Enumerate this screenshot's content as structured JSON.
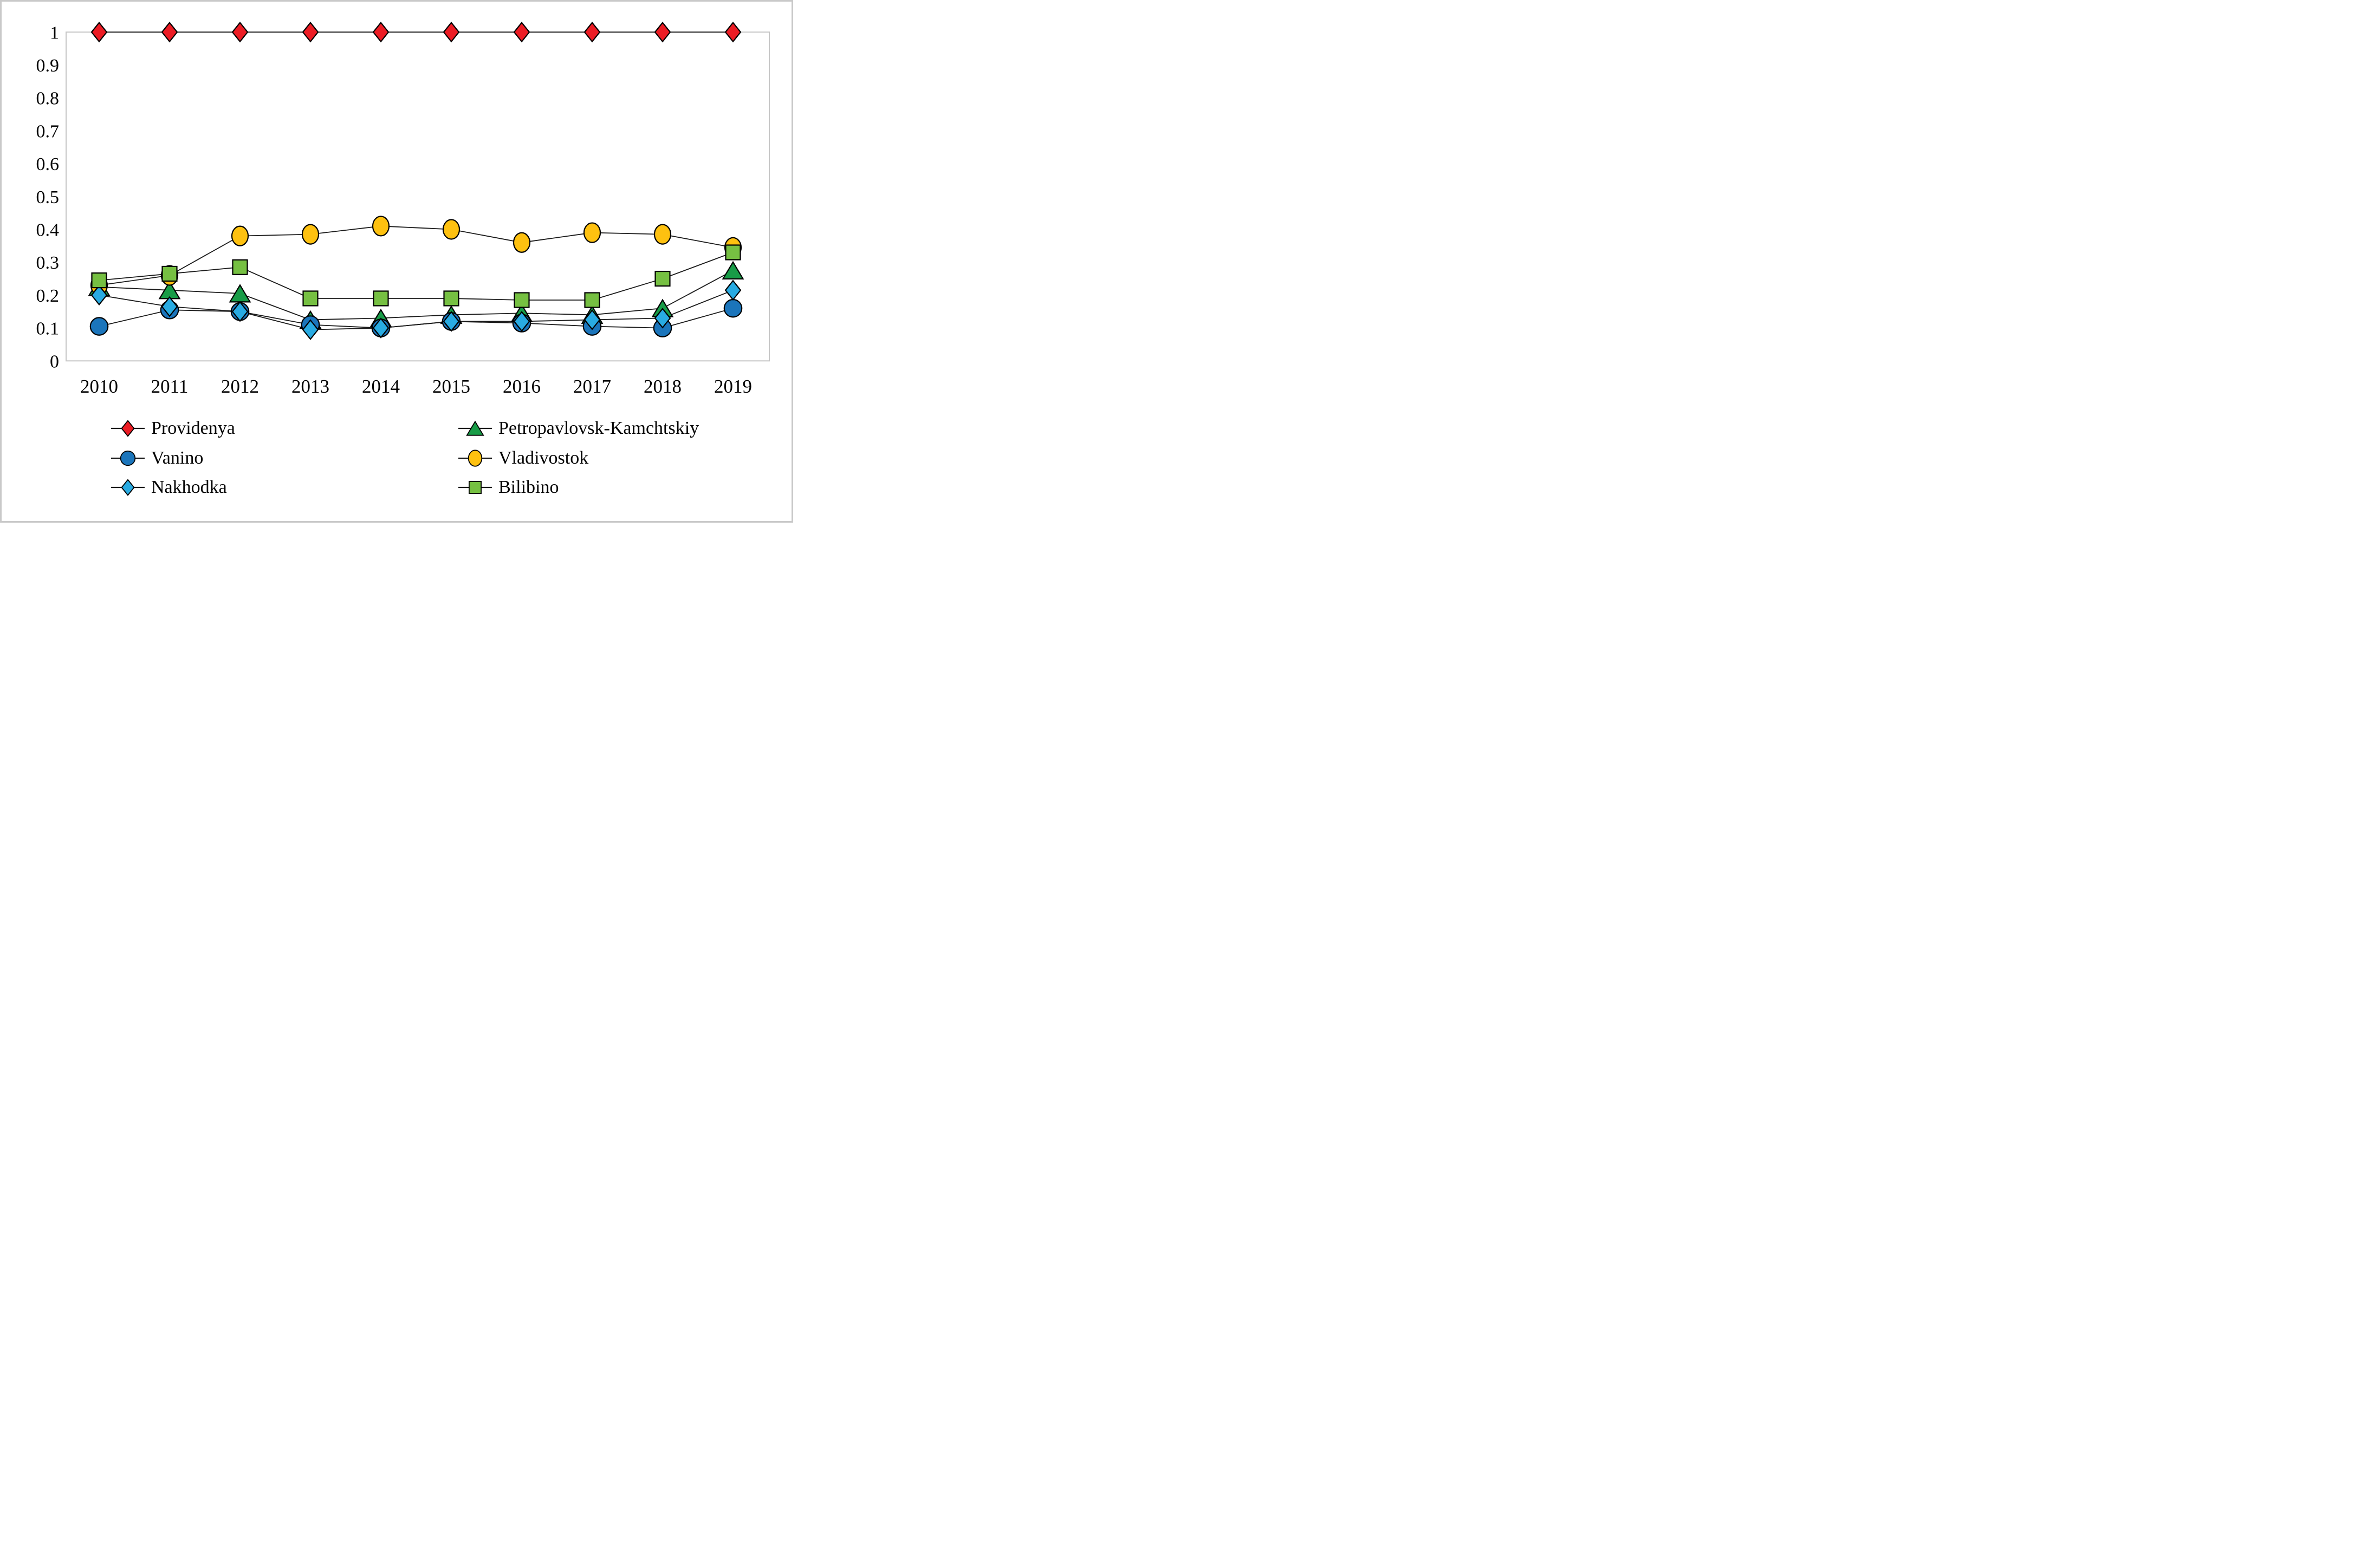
{
  "figure": {
    "background": "#ffffff",
    "border_color": "#c9c9c9"
  },
  "chart_data": {
    "type": "line",
    "title": "",
    "xlabel": "",
    "ylabel": "",
    "x": [
      2010,
      2011,
      2012,
      2013,
      2014,
      2015,
      2016,
      2017,
      2018,
      2019
    ],
    "ylim": [
      0,
      1
    ],
    "grid": false,
    "legend_position": "bottom, two columns",
    "ytick_labels": [
      "1",
      "0.9",
      "0.8",
      "0.7",
      "0.6",
      "0.5",
      "0.4",
      "0.3",
      "0.2",
      "0.1",
      "0"
    ],
    "ytick_values": [
      1,
      0.9,
      0.8,
      0.7,
      0.6,
      0.5,
      0.4,
      0.3,
      0.2,
      0.1,
      0
    ],
    "axis_color": "#c6c6c6",
    "line_color": "#1a1a1a",
    "tick_text_color": "#000000",
    "series": [
      {
        "name": "Providenya",
        "marker": "diamond",
        "color": "#ec1c24",
        "values": [
          1,
          1,
          1,
          1,
          1,
          1,
          1,
          1,
          1,
          1
        ]
      },
      {
        "name": "Petropavlovsk-Kamchtskiy",
        "marker": "triangle",
        "color": "#189c47",
        "values": [
          0.225,
          0.215,
          0.205,
          0.125,
          0.13,
          0.14,
          0.145,
          0.14,
          0.16,
          0.275
        ]
      },
      {
        "name": "Vanino",
        "marker": "circle",
        "color": "#1b75bb",
        "values": [
          0.105,
          0.155,
          0.15,
          0.11,
          0.1,
          0.12,
          0.115,
          0.105,
          0.1,
          0.16
        ]
      },
      {
        "name": "Vladivostok",
        "marker": "ellipse",
        "color": "#fec110",
        "values": [
          0.23,
          0.26,
          0.38,
          0.385,
          0.41,
          0.4,
          0.36,
          0.39,
          0.385,
          0.345
        ]
      },
      {
        "name": "Nakhodka",
        "marker": "diamond",
        "color": "#29abe2",
        "values": [
          0.2,
          0.165,
          0.15,
          0.095,
          0.1,
          0.12,
          0.12,
          0.125,
          0.13,
          0.215
        ]
      },
      {
        "name": "Bilibino",
        "marker": "square",
        "color": "#76c042",
        "values": [
          0.245,
          0.265,
          0.285,
          0.19,
          0.19,
          0.19,
          0.185,
          0.185,
          0.25,
          0.33
        ]
      }
    ]
  },
  "legend": {
    "left_column_series": [
      0,
      2,
      4
    ],
    "right_column_series": [
      1,
      3,
      5
    ]
  }
}
